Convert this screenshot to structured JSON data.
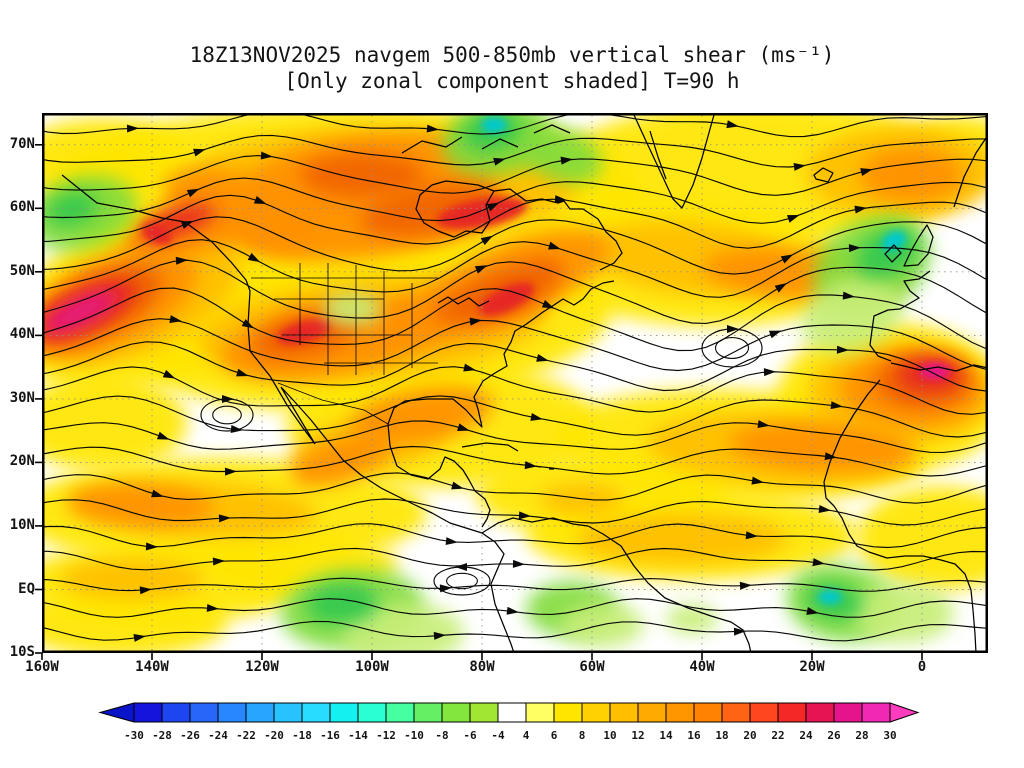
{
  "title": {
    "line1": "18Z13NOV2025 navgem 500-850mb vertical shear (ms⁻¹)",
    "line2": "[Only zonal component shaded] T=90 h"
  },
  "map": {
    "lat_ticks": [
      "70N",
      "60N",
      "50N",
      "40N",
      "30N",
      "20N",
      "10N",
      "EQ",
      "10S"
    ],
    "lon_ticks": [
      "160W",
      "140W",
      "120W",
      "100W",
      "80W",
      "60W",
      "40W",
      "20W",
      "0"
    ]
  },
  "colorbar": {
    "labels": [
      "-30",
      "-28",
      "-26",
      "-24",
      "-22",
      "-20",
      "-18",
      "-16",
      "-14",
      "-12",
      "-10",
      "-8",
      "-6",
      "-4",
      "4",
      "6",
      "8",
      "10",
      "12",
      "14",
      "16",
      "18",
      "20",
      "22",
      "24",
      "26",
      "28",
      "30"
    ],
    "cell_colors": [
      "#1414dc",
      "#1e46f0",
      "#2866fa",
      "#2887ff",
      "#28a5ff",
      "#28c3ff",
      "#28dcff",
      "#14f0f0",
      "#28ffd2",
      "#46ffa0",
      "#64f064",
      "#82e63c",
      "#a0e632",
      "#ffffff",
      "#ffff64",
      "#ffe600",
      "#ffd200",
      "#ffbe00",
      "#ffaa00",
      "#ff9600",
      "#ff8200",
      "#ff6414",
      "#ff461e",
      "#f52828",
      "#e61450",
      "#e6148c",
      "#f028b4"
    ],
    "left_arrow_color": "#0a14c8",
    "right_arrow_color": "#ff3cbe"
  },
  "chart_data": {
    "type": "heatmap",
    "title": "18Z13NOV2025 navgem 500-850mb vertical shear (ms⁻¹)",
    "subtitle": "[Only zonal component shaded] T=90 h",
    "model": "navgem",
    "valid_time": "18Z13NOV2025",
    "forecast_hour_label": "T=90 h",
    "field": "500-850mb vertical shear, zonal component shaded",
    "units": "ms⁻¹",
    "overlay": "streamlines of shear vector with arrowheads",
    "x_axis": {
      "label": "longitude",
      "tick_labels": [
        "160W",
        "140W",
        "120W",
        "100W",
        "80W",
        "60W",
        "40W",
        "20W",
        "0"
      ],
      "range_deg_east": [
        -160,
        12
      ]
    },
    "y_axis": {
      "label": "latitude",
      "tick_labels": [
        "70N",
        "60N",
        "50N",
        "40N",
        "30N",
        "20N",
        "10N",
        "EQ",
        "10S"
      ],
      "range_deg_north": [
        -10,
        75
      ]
    },
    "grid": "dotted graticule every 20 deg lon / 10 deg lat",
    "legend_position": "bottom",
    "contour_levels": [
      -30,
      -28,
      -26,
      -24,
      -22,
      -20,
      -18,
      -16,
      -14,
      -12,
      -10,
      -8,
      -6,
      -4,
      4,
      6,
      8,
      10,
      12,
      14,
      16,
      18,
      20,
      22,
      24,
      26,
      28,
      30
    ],
    "level_colors": [
      "#1414dc",
      "#1e46f0",
      "#2866fa",
      "#2887ff",
      "#28a5ff",
      "#28c3ff",
      "#28dcff",
      "#14f0f0",
      "#28ffd2",
      "#46ffa0",
      "#64f064",
      "#82e63c",
      "#a0e632",
      "#ffffff",
      "#ffff64",
      "#ffe600",
      "#ffd200",
      "#ffbe00",
      "#ffaa00",
      "#ff9600",
      "#ff8200",
      "#ff6414",
      "#ff461e",
      "#f52828",
      "#e61450",
      "#e6148c",
      "#f028b4"
    ],
    "colors": {
      "yl": "#ffe600",
      "gd": "#ffbe00",
      "or": "#ff9100",
      "do": "#f06400",
      "rd": "#e62828",
      "mg": "#e6148c",
      "pg": "#c8ee78",
      "gr": "#82dc3c",
      "bg": "#32c850",
      "cy": "#00c8d2"
    },
    "shaded_regions_format": "[cx, cy, rx, ry, rotation_deg, color_key, core_flag] in map svg units (946x540)",
    "shaded_regions": [
      [
        300,
        80,
        300,
        88,
        0,
        "yl"
      ],
      [
        720,
        60,
        210,
        72,
        0,
        "yl"
      ],
      [
        60,
        45,
        85,
        40,
        0,
        "yl"
      ],
      [
        120,
        180,
        160,
        85,
        -20,
        "yl"
      ],
      [
        330,
        215,
        240,
        80,
        -5,
        "yl"
      ],
      [
        640,
        150,
        170,
        62,
        5,
        "yl"
      ],
      [
        850,
        285,
        115,
        75,
        0,
        "yl"
      ],
      [
        700,
        332,
        185,
        55,
        3,
        "yl"
      ],
      [
        400,
        312,
        155,
        62,
        0,
        "yl"
      ],
      [
        180,
        400,
        205,
        55,
        0,
        "yl"
      ],
      [
        120,
        470,
        145,
        40,
        0,
        "yl"
      ],
      [
        650,
        422,
        165,
        45,
        0,
        "yl"
      ],
      [
        900,
        425,
        85,
        52,
        0,
        "yl"
      ],
      [
        560,
        382,
        125,
        42,
        0,
        "yl"
      ],
      [
        80,
        510,
        105,
        35,
        0,
        "yl"
      ],
      [
        260,
        452,
        95,
        30,
        0,
        "yl"
      ],
      [
        60,
        310,
        85,
        48,
        0,
        "yl"
      ],
      [
        920,
        35,
        60,
        32,
        0,
        "yl"
      ],
      [
        340,
        70,
        195,
        56,
        0,
        "gd"
      ],
      [
        860,
        60,
        95,
        46,
        0,
        "gd"
      ],
      [
        90,
        185,
        115,
        56,
        -22,
        "gd"
      ],
      [
        330,
        215,
        175,
        50,
        -5,
        "gd"
      ],
      [
        650,
        145,
        105,
        36,
        5,
        "gd"
      ],
      [
        860,
        280,
        92,
        52,
        0,
        "gd"
      ],
      [
        740,
        336,
        135,
        36,
        3,
        "gd"
      ],
      [
        330,
        330,
        85,
        30,
        -15,
        "gd"
      ],
      [
        150,
        396,
        125,
        28,
        3,
        "gd"
      ],
      [
        90,
        466,
        72,
        20,
        0,
        "gd"
      ],
      [
        640,
        426,
        105,
        25,
        0,
        "gd"
      ],
      [
        540,
        386,
        42,
        15,
        0,
        "gd"
      ],
      [
        330,
        62,
        125,
        40,
        -5,
        "or"
      ],
      [
        200,
        96,
        82,
        34,
        18,
        "or"
      ],
      [
        870,
        62,
        52,
        28,
        0,
        "or"
      ],
      [
        150,
        116,
        72,
        26,
        -15,
        "or"
      ],
      [
        70,
        190,
        92,
        42,
        -24,
        "or"
      ],
      [
        330,
        106,
        135,
        38,
        -8,
        "or"
      ],
      [
        480,
        162,
        92,
        36,
        -20,
        "or"
      ],
      [
        290,
        226,
        112,
        36,
        -10,
        "or"
      ],
      [
        420,
        196,
        92,
        30,
        -15,
        "or"
      ],
      [
        760,
        162,
        100,
        26,
        5,
        "or"
      ],
      [
        870,
        276,
        72,
        38,
        0,
        "or"
      ],
      [
        780,
        334,
        92,
        24,
        3,
        "or"
      ],
      [
        380,
        302,
        72,
        26,
        -10,
        "or"
      ],
      [
        300,
        346,
        52,
        20,
        -20,
        "or"
      ],
      [
        100,
        392,
        72,
        20,
        3,
        "or"
      ],
      [
        320,
        62,
        62,
        22,
        0,
        "do"
      ],
      [
        55,
        193,
        72,
        30,
        -25,
        "do"
      ],
      [
        390,
        97,
        72,
        24,
        -10,
        "do"
      ],
      [
        470,
        176,
        56,
        22,
        -25,
        "do"
      ],
      [
        265,
        221,
        56,
        22,
        -15,
        "do"
      ],
      [
        435,
        189,
        46,
        16,
        -18,
        "do"
      ],
      [
        880,
        269,
        48,
        26,
        0,
        "do"
      ],
      [
        45,
        196,
        56,
        20,
        -25,
        "rd"
      ],
      [
        135,
        109,
        40,
        14,
        -18,
        "rd"
      ],
      [
        440,
        100,
        46,
        14,
        -10,
        "rd",
        1
      ],
      [
        465,
        186,
        30,
        12,
        -25,
        "rd",
        1
      ],
      [
        262,
        219,
        28,
        11,
        -15,
        "rd",
        1
      ],
      [
        888,
        262,
        33,
        17,
        0,
        "rd"
      ],
      [
        115,
        121,
        16,
        9,
        25,
        "rd",
        1
      ],
      [
        38,
        199,
        40,
        12,
        -26,
        "mg"
      ],
      [
        893,
        258,
        15,
        8,
        0,
        "mg",
        1
      ],
      [
        455,
        26,
        56,
        36,
        -10,
        "gr"
      ],
      [
        520,
        42,
        42,
        26,
        20,
        "gr"
      ],
      [
        40,
        100,
        56,
        36,
        -15,
        "gr"
      ],
      [
        830,
        152,
        62,
        46,
        -30,
        "gr"
      ],
      [
        800,
        490,
        56,
        38,
        10,
        "gr"
      ],
      [
        310,
        496,
        72,
        40,
        -5,
        "gr"
      ],
      [
        530,
        496,
        46,
        28,
        0,
        "gr"
      ],
      [
        310,
        196,
        30,
        17,
        0,
        "pg"
      ],
      [
        810,
        202,
        52,
        36,
        -20,
        "pg"
      ],
      [
        360,
        520,
        62,
        30,
        0,
        "pg"
      ],
      [
        560,
        512,
        42,
        22,
        0,
        "pg"
      ],
      [
        860,
        500,
        52,
        30,
        0,
        "pg"
      ],
      [
        650,
        506,
        26,
        15,
        0,
        "pg"
      ],
      [
        450,
        18,
        30,
        19,
        -10,
        "bg"
      ],
      [
        30,
        96,
        26,
        16,
        -15,
        "bg"
      ],
      [
        845,
        140,
        33,
        22,
        -30,
        "bg"
      ],
      [
        792,
        488,
        29,
        18,
        10,
        "bg"
      ],
      [
        300,
        491,
        36,
        20,
        -5,
        "bg"
      ],
      [
        452,
        12,
        13,
        8,
        0,
        "cy",
        1
      ],
      [
        852,
        128,
        13,
        9,
        -30,
        "cy",
        1
      ],
      [
        788,
        484,
        12,
        7,
        0,
        "cy",
        1
      ]
    ],
    "streamlines": {
      "seed": 7,
      "row_spacing": 24,
      "stroke": "#0a0a0a"
    },
    "eddies": [
      [
        690,
        235,
        30,
        19,
        1
      ],
      [
        185,
        302,
        26,
        16,
        1
      ],
      [
        420,
        468,
        28,
        14,
        -1
      ]
    ],
    "coastlines": [
      "M20 62 L55 90 L92 97 L120 105 L143 109 L170 129 L189 149 L204 167 L208 178 L206 212 L208 238 L228 263",
      "M228 263 L245 292 L261 315 L273 331 M273 331 L261 311 L249 291 L239 274 M239 274 L252 288 L269 307 L285 327 L301 347 L319 362 L339 375 L355 383 L371 391 L390 400 L408 410 L424 415 L440 420",
      "M440 420 L453 429 L462 441 L455 457 L449 471 L453 491 L461 511 L469 531 L472 540",
      "M440 420 L456 410 L471 405 L490 409 L511 405 L531 411 L546 413 L561 421 L579 433 L592 453 L606 470 L623 485 L646 495 L669 503 L689 509 L701 517 L707 531 L709 540",
      "M346 311 L352 295 L363 288 L385 286 L411 286 L424 297 L433 307 L440 314 M440 314 L436 296 L432 284 L441 268 L453 260 L465 253 L462 241 L469 229 L473 218 L483 212 L490 207 L501 199 L512 192",
      "M346 311 L348 333 L355 353 L369 362 L386 366 L398 356 L403 344 L412 348 L421 357 L427 367 L433 378 L443 386 L448 397 L445 406 L440 414",
      "M512 192 L521 186 L532 192 L541 186 L549 176 L561 170 L572 168 M558 157 L572 150 L580 140 L574 128 L564 119 L556 106 L541 96 L528 96 L522 88",
      "M452 78 L444 92 L448 108 L440 120 L424 118 L412 124 L396 118 L382 110 L374 96 L378 82 L390 72 L404 68 L420 70 L436 72 L452 78 M452 78 L468 76 L484 88 L500 86 L516 90 L522 88",
      "M360 40 L380 28 L404 34 L420 24 M440 36 L458 26 L476 34 M492 20 L510 12 L528 20",
      "M396 190 L406 184 L416 191 L427 185 L437 193 L447 188",
      "M592 2 L604 28 L618 58 L631 86 L640 95 L651 72 L660 45 L668 16 L672 2 M608 18 L616 44 L624 66",
      "M772 62 L781 55 L791 60 L786 69 L774 66 Z",
      "M862 153 L869 138 L877 124 L885 112 L891 124 L886 141 L876 152 Z M843 141 L852 132 L859 140 L850 149 Z",
      "M912 94 L922 64 L934 40 L946 22",
      "M888 158 L877 166 L862 168 L868 178 L877 185 L858 196 L846 197 L832 203 L830 217 L828 232 L836 243 L849 248 M849 250 L862 253 L878 257 L896 254 L914 258 L932 252 L946 255",
      "M838 267 L826 281 L812 301 L798 325 L788 349 L782 369 L784 385 L792 393 L800 405 L807 421 L815 433 L827 439 L845 445 L863 443 L881 443 L899 447 L913 451 L923 461 L929 477 L931 497 L933 521 L934 540",
      "M420 334 L444 330 L466 332 L476 338 M484 352 L499 354 M507 356 L512 356"
    ],
    "borders": [
      "M209 165 L396 165",
      "M258 150 L258 232 M286 150 L286 262 M314 152 L314 262 M342 158 L342 262 M370 170 L370 255",
      "M232 186 L342 186 M240 222 L370 222 M282 250 L396 250",
      "M236 270 L280 287 L322 297 L346 311"
    ]
  }
}
